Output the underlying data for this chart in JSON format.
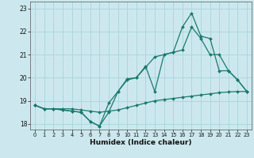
{
  "xlabel": "Humidex (Indice chaleur)",
  "xlim": [
    -0.5,
    23.5
  ],
  "ylim": [
    17.75,
    23.3
  ],
  "yticks": [
    18,
    19,
    20,
    21,
    22,
    23
  ],
  "xticks": [
    0,
    1,
    2,
    3,
    4,
    5,
    6,
    7,
    8,
    9,
    10,
    11,
    12,
    13,
    14,
    15,
    16,
    17,
    18,
    19,
    20,
    21,
    22,
    23
  ],
  "background_color": "#cce8ee",
  "grid_color": "#a8d4dc",
  "line_color": "#1a7a6e",
  "line1": [
    18.8,
    18.65,
    18.65,
    18.65,
    18.65,
    18.6,
    18.55,
    18.5,
    18.55,
    18.6,
    18.7,
    18.8,
    18.9,
    19.0,
    19.05,
    19.1,
    19.15,
    19.2,
    19.25,
    19.3,
    19.35,
    19.38,
    19.4,
    19.4
  ],
  "line2": [
    18.8,
    18.65,
    18.65,
    18.6,
    18.55,
    18.5,
    18.1,
    17.9,
    18.9,
    19.4,
    19.95,
    20.0,
    20.5,
    19.4,
    21.0,
    21.1,
    21.2,
    22.2,
    21.7,
    21.0,
    21.0,
    20.3,
    19.9,
    19.4
  ],
  "line3": [
    18.8,
    18.65,
    18.65,
    18.6,
    18.55,
    18.5,
    18.1,
    17.9,
    18.5,
    19.4,
    19.9,
    20.0,
    20.45,
    20.9,
    21.0,
    21.1,
    22.2,
    22.8,
    21.8,
    21.7,
    20.3,
    20.3,
    19.9,
    19.4
  ]
}
